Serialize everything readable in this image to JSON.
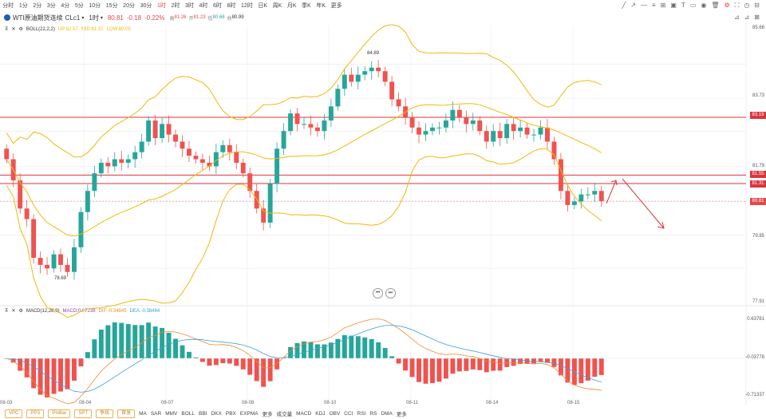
{
  "timeframes": [
    "分时",
    "1分",
    "2分",
    "3分",
    "4分",
    "5分",
    "10分",
    "15分",
    "20分",
    "30分",
    "1时",
    "2时",
    "3时",
    "4时",
    "6时",
    "8时",
    "12时",
    "日K",
    "周K",
    "月K",
    "季K",
    "年K",
    "更多"
  ],
  "active_timeframe": "1时",
  "instrument": {
    "name": "WTI原油期货连续",
    "code": "CLc1",
    "period": "1时",
    "last": "80.81",
    "change": "-0.18",
    "change_pct": "-0.22%",
    "high_label": "高",
    "high": "81.26",
    "open_label": "开",
    "open": "81.23",
    "low_label": "低",
    "low": "80.68",
    "close_label": "收",
    "close": "80.99"
  },
  "boll_legend": {
    "name": "BOLL(22,2,2)",
    "up": "UP:82.57",
    "mid": "MID:81.31",
    "low": "LOW:80.05"
  },
  "macd_legend": {
    "name": "MACD(12,26,9)",
    "macd": "MACD:0.07238",
    "dif": "DIF:-0.34845",
    "dea": "DEA:-0.38464"
  },
  "price_axis": [
    "85.66",
    "83.73",
    "81.79",
    "79.85",
    "77.91"
  ],
  "macd_axis": [
    "0.63781",
    "-0.03778",
    "-0.71337"
  ],
  "price_tags": [
    {
      "value": "83.19",
      "color": "#d9363e"
    },
    {
      "value": "81.55",
      "color": "#d9363e"
    },
    {
      "value": "81.31",
      "color": "#d9363e"
    },
    {
      "value": "80.81",
      "color": "#e04a4a"
    }
  ],
  "annotations": {
    "high": "84.89",
    "low": "78.69"
  },
  "dates": [
    "08-03",
    "08-04",
    "08-07",
    "08-08",
    "08-10",
    "08-11",
    "08-14",
    "08-15"
  ],
  "bottom_pills": [
    "VPC",
    "PPS",
    "PinBar",
    "SPT",
    "争线",
    "首发"
  ],
  "bottom_indicators": [
    "MA",
    "SAR",
    "MMV",
    "BOLL",
    "BBI",
    "DKX",
    "PBX",
    "EXPMA",
    "更多",
    "成交量",
    "MACD",
    "KDJ",
    "OBV",
    "CCI",
    "RSI",
    "RS",
    "DMA",
    "更多"
  ],
  "colors": {
    "up": "#26a69a",
    "down": "#ef5350",
    "boll": "#f0b90b",
    "line": "#d9363e"
  },
  "chart_data": {
    "type": "candlestick",
    "title": "WTI原油期货连续 CLc1 1时",
    "ylim": [
      77.91,
      85.66
    ],
    "candles_close": [
      82.0,
      81.4,
      80.6,
      80.3,
      79.2,
      79.0,
      78.9,
      79.3,
      79.0,
      78.8,
      79.5,
      80.5,
      81.1,
      81.6,
      81.9,
      81.8,
      82.0,
      81.9,
      82.0,
      82.2,
      82.5,
      83.1,
      82.6,
      83.0,
      82.7,
      82.5,
      82.3,
      82.1,
      82.0,
      81.9,
      81.8,
      82.2,
      82.4,
      82.2,
      81.9,
      81.6,
      81.1,
      80.6,
      80.2,
      81.3,
      82.3,
      82.8,
      83.3,
      83.0,
      83.0,
      82.9,
      82.8,
      83.1,
      83.5,
      84.0,
      84.4,
      84.2,
      84.4,
      84.5,
      84.6,
      84.5,
      84.2,
      83.7,
      83.5,
      83.2,
      82.9,
      82.7,
      82.8,
      82.9,
      82.9,
      83.1,
      83.4,
      83.2,
      83.0,
      83.1,
      82.8,
      82.5,
      82.8,
      82.6,
      83.0,
      82.8,
      82.9,
      82.7,
      82.7,
      82.9,
      82.5,
      82.0,
      81.1,
      80.7,
      80.8,
      81.0,
      81.0,
      81.1,
      80.81
    ]
  }
}
